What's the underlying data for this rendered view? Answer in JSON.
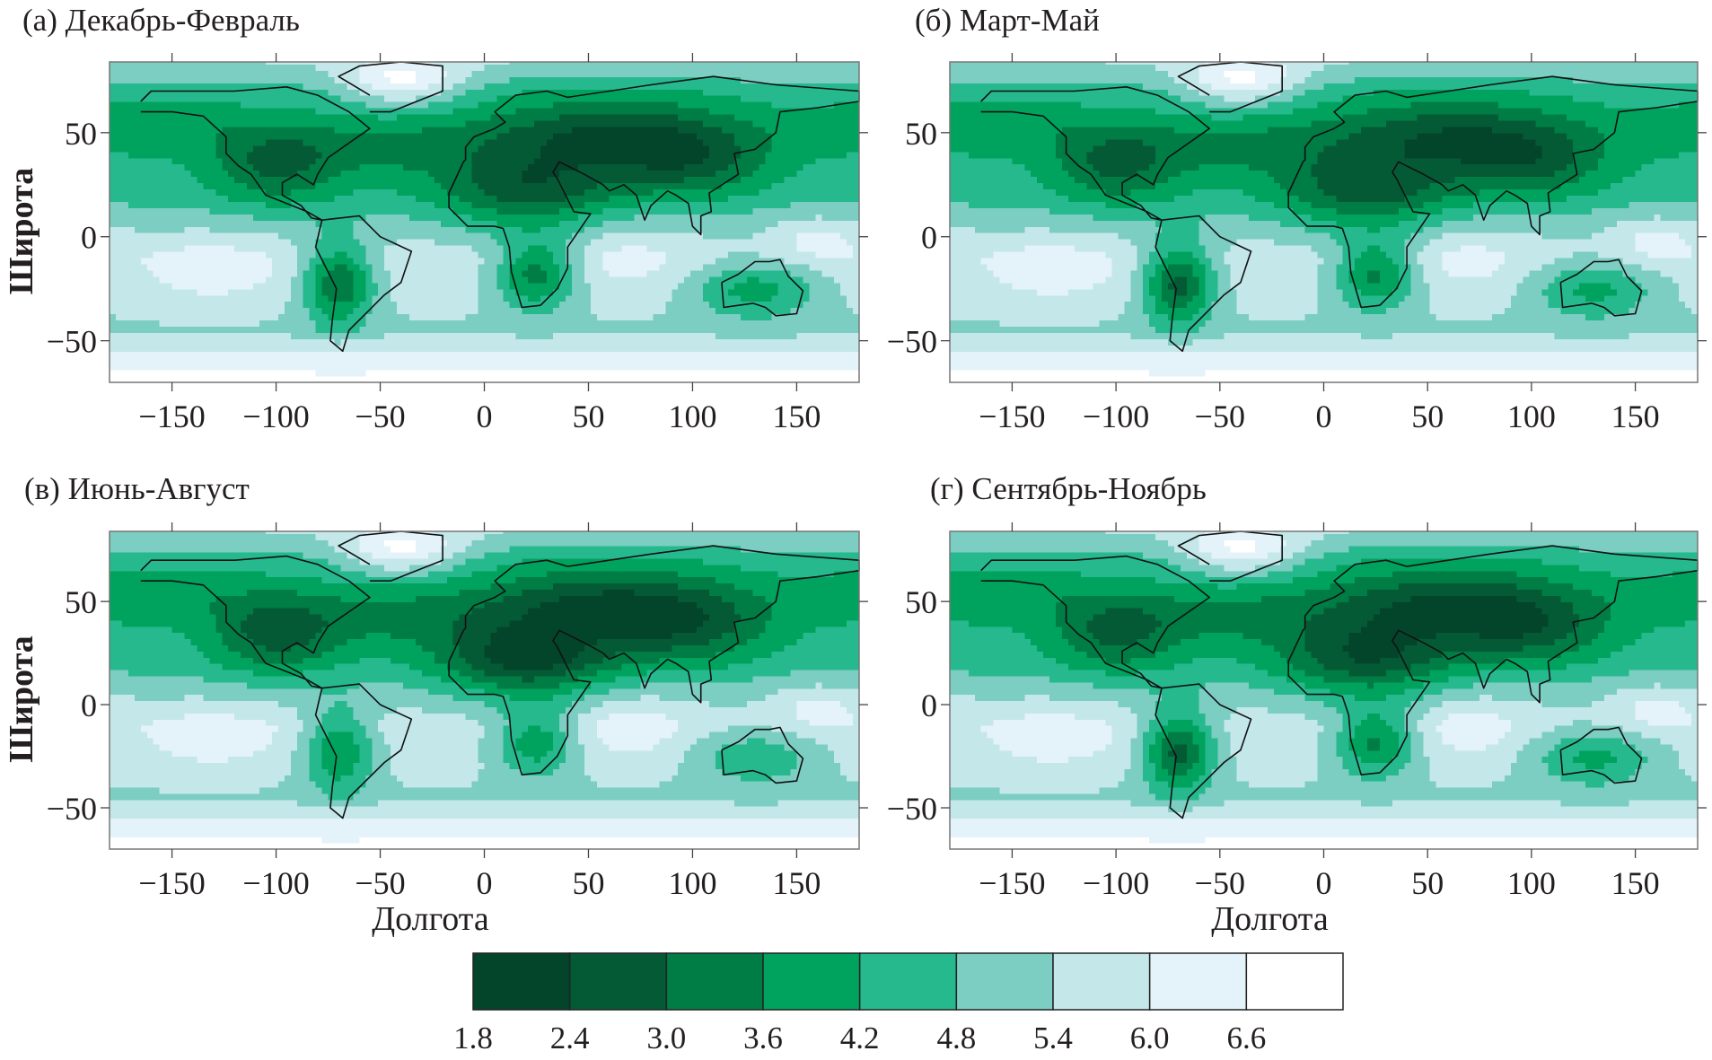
{
  "chart_data": {
    "type": "heatmap",
    "subtype": "filled contour world maps",
    "panels": [
      {
        "title": "(а) Декабрь-Февраль"
      },
      {
        "title": "(б) Март-Май"
      },
      {
        "title": "(в) Июнь-Август"
      },
      {
        "title": "(г) Сентябрь-Ноябрь"
      }
    ],
    "xlabel": "Долгота",
    "ylabel": "Широта",
    "xlim": [
      -180,
      180
    ],
    "ylim": [
      -70,
      84
    ],
    "xticks": [
      -150,
      -100,
      -50,
      0,
      50,
      100,
      150
    ],
    "xtick_labels": [
      "−150",
      "−100",
      "−50",
      "0",
      "50",
      "100",
      "150"
    ],
    "yticks": [
      50,
      0,
      -50
    ],
    "ytick_labels": [
      "50",
      "0",
      "−50"
    ],
    "grid": false,
    "colorbar": {
      "position": "bottom",
      "levels": [
        1.8,
        2.4,
        3.0,
        3.6,
        4.2,
        4.8,
        5.4,
        6.0,
        6.6
      ],
      "labels": [
        "1.8",
        "2.4",
        "3.0",
        "3.6",
        "4.2",
        "4.8",
        "5.4",
        "6.0",
        "6.6"
      ],
      "colors": [
        "#03452a",
        "#055a36",
        "#007c45",
        "#00a35e",
        "#26b98e",
        "#7ccdc2",
        "#c4e7ea",
        "#e4f3f9",
        "#ffffff"
      ]
    }
  }
}
